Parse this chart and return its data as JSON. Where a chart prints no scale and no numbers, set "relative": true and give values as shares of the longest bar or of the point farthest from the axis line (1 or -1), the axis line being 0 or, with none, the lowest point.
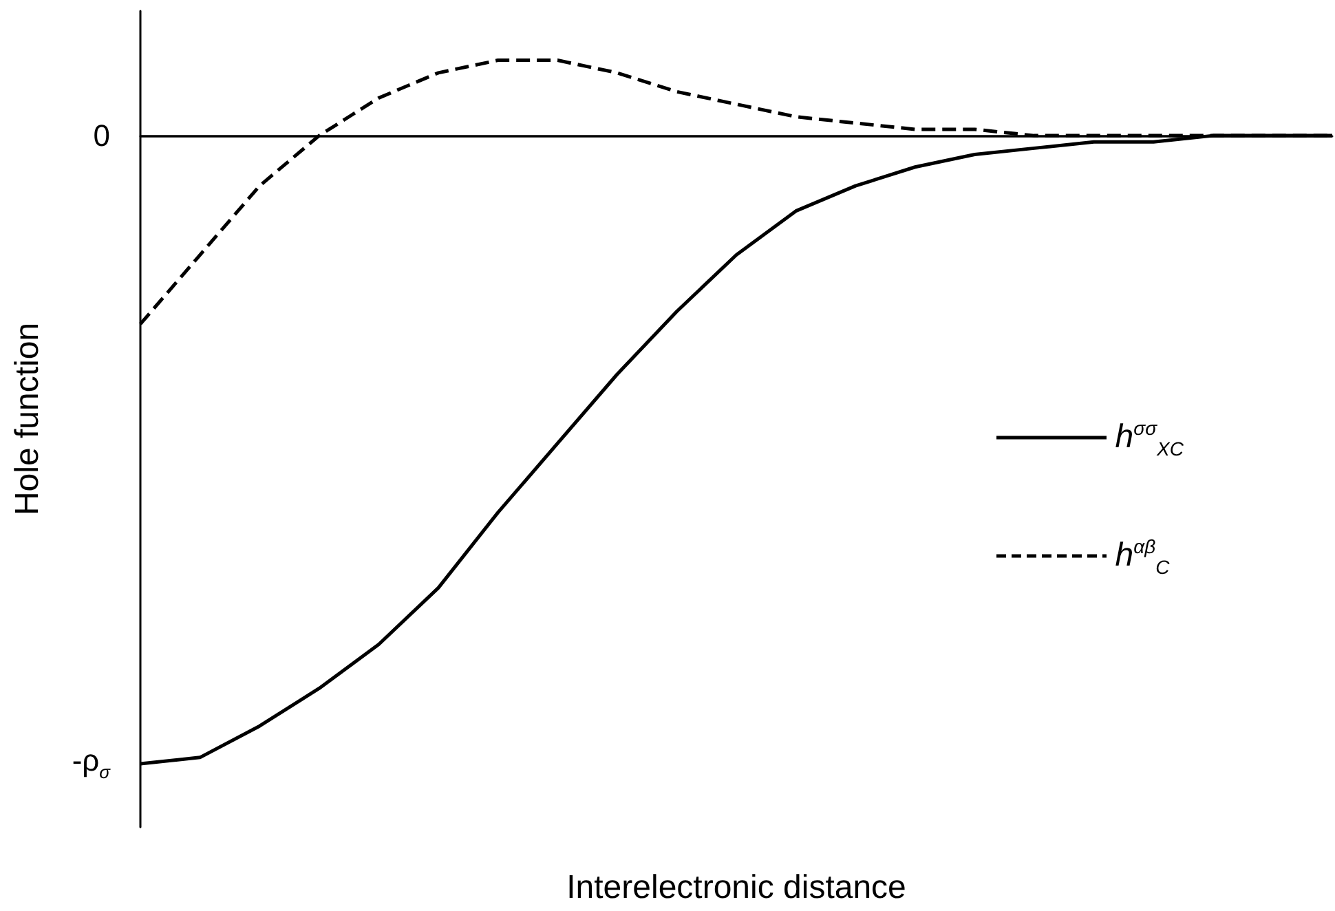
{
  "chart_data": {
    "type": "line",
    "xlabel": "Interelectronic distance",
    "ylabel": "Hole function",
    "relative": true,
    "categories": [
      null,
      null,
      null,
      null,
      null,
      null,
      null,
      null,
      null,
      null,
      null,
      null,
      null,
      null,
      null,
      null,
      null,
      null,
      null,
      null,
      null
    ],
    "series": [
      {
        "name": "h$^{σσ}$$_{XC}$",
        "color": "#000000",
        "line_style": "solid",
        "values": [
          -1.0,
          -0.99,
          -0.94,
          -0.88,
          -0.81,
          -0.72,
          -0.6,
          -0.49,
          -0.38,
          -0.28,
          -0.19,
          -0.12,
          -0.08,
          -0.05,
          -0.03,
          -0.02,
          -0.01,
          -0.01,
          0,
          0,
          0
        ]
      },
      {
        "name": "h$^{αβ}$$_{C}$",
        "color": "#000000",
        "line_style": "dashed",
        "values": [
          -0.3,
          -0.19,
          -0.08,
          0,
          0.06,
          0.1,
          0.12,
          0.12,
          0.1,
          0.07,
          0.05,
          0.03,
          0.02,
          0.01,
          0.01,
          0,
          0,
          0,
          0,
          0,
          0
        ]
      }
    ],
    "annotations": [
      "0",
      "-ρ$_{σ}$"
    ],
    "ref_lines": [
      {
        "axis": "y",
        "value": 0,
        "color": "#000000"
      }
    ],
    "grid": false,
    "legend": "right",
    "marker": "none"
  }
}
